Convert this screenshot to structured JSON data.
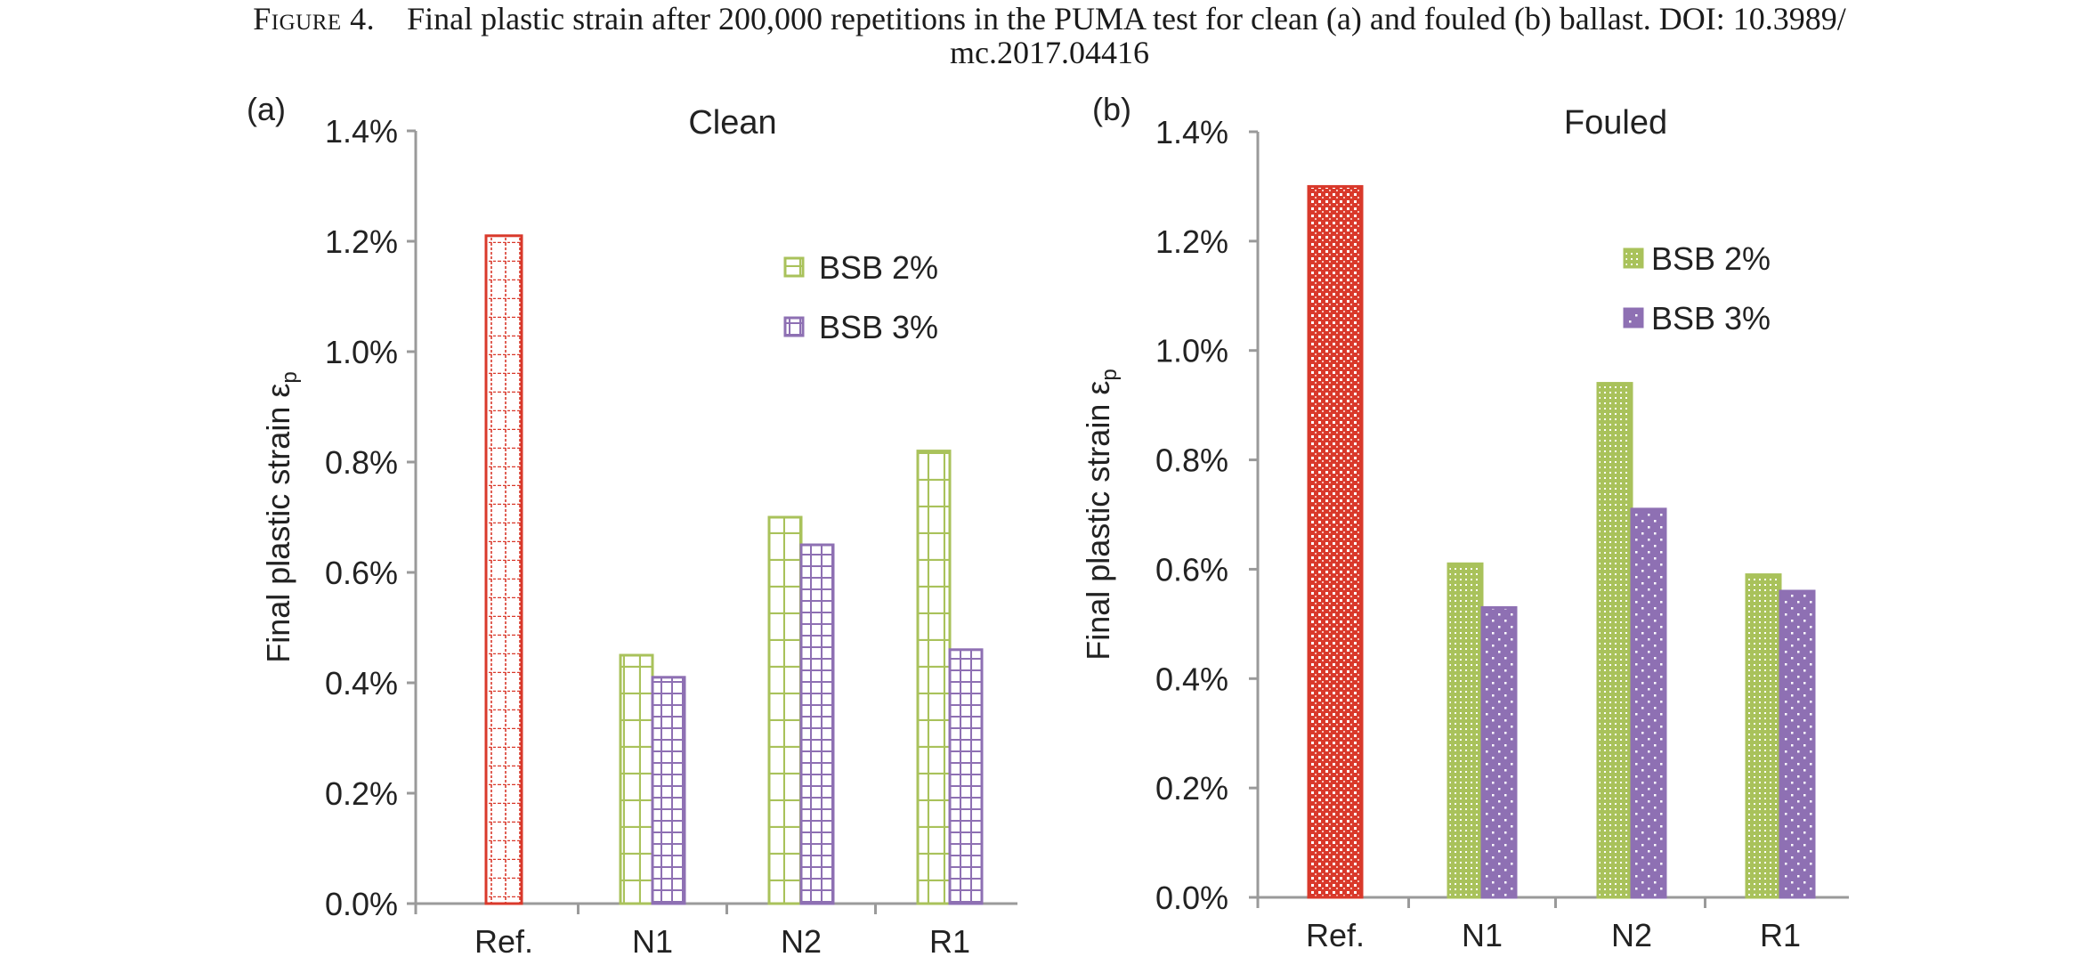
{
  "caption": {
    "label": "Figure 4.",
    "text": "Final plastic strain after 200,000 repetitions in the PUMA test for clean (a) and fouled (b) ballast. DOI: 10.3989/",
    "text2": "mc.2017.04416"
  },
  "chart_data": [
    {
      "type": "bar",
      "panel_label": "(a)",
      "title": "Clean",
      "ylabel": "Final plastic strain ε",
      "ylabel_sub": "p",
      "ylim": [
        0,
        1.4
      ],
      "yticks": [
        0,
        0.2,
        0.4,
        0.6,
        0.8,
        1.0,
        1.2,
        1.4
      ],
      "ytick_labels": [
        "0.0%",
        "0.2%",
        "0.4%",
        "0.6%",
        "0.8%",
        "1.0%",
        "1.2%",
        "1.4%"
      ],
      "categories": [
        "Ref.",
        "N1",
        "N2",
        "R1"
      ],
      "reference": {
        "category": "Ref.",
        "value": 1.21,
        "color": "#d9392b"
      },
      "series": [
        {
          "name": "BSB 2%",
          "values": [
            null,
            0.45,
            0.7,
            0.82
          ],
          "color": "#a9c25b"
        },
        {
          "name": "BSB 3%",
          "values": [
            null,
            0.41,
            0.65,
            0.46
          ],
          "color": "#8e70b3"
        }
      ],
      "pattern": "grid",
      "legend_position": "upper-right"
    },
    {
      "type": "bar",
      "panel_label": "(b)",
      "title": "Fouled",
      "ylabel": "Final plastic strain ε",
      "ylabel_sub": "p",
      "ylim": [
        0,
        1.4
      ],
      "yticks": [
        0,
        0.2,
        0.4,
        0.6,
        0.8,
        1.0,
        1.2,
        1.4
      ],
      "ytick_labels": [
        "0.0%",
        "0.2%",
        "0.4%",
        "0.6%",
        "0.8%",
        "1.0%",
        "1.2%",
        "1.4%"
      ],
      "categories": [
        "Ref.",
        "N1",
        "N2",
        "R1"
      ],
      "reference": {
        "category": "Ref.",
        "value": 1.3,
        "color": "#d9392b"
      },
      "series": [
        {
          "name": "BSB 2%",
          "values": [
            null,
            0.61,
            0.94,
            0.59
          ],
          "color": "#a9c25b"
        },
        {
          "name": "BSB 3%",
          "values": [
            null,
            0.53,
            0.71,
            0.56
          ],
          "color": "#8e70b3"
        }
      ],
      "pattern": "dots",
      "legend_position": "upper-right"
    }
  ]
}
